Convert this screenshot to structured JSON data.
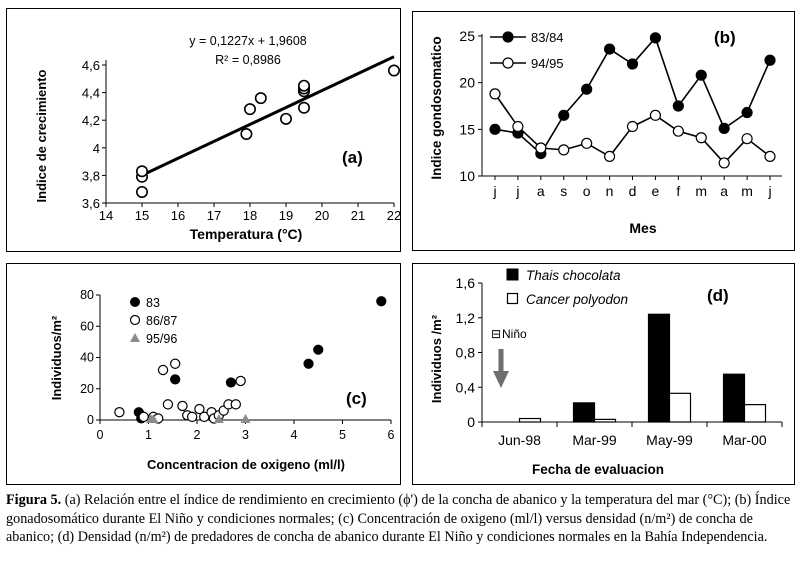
{
  "figures": [
    {
      "type": "scatter",
      "panel_label": "(a)",
      "xlabel": "Temperatura (°C)",
      "ylabel": "Indice de crecimiento",
      "xticks": [
        "14",
        "15",
        "16",
        "17",
        "18",
        "19",
        "20",
        "21",
        "22"
      ],
      "yticks": [
        "3,6",
        "3,8",
        "4",
        "4,2",
        "4,4",
        "4,6"
      ],
      "xlim": [
        14,
        22
      ],
      "ylim": [
        3.6,
        4.6
      ],
      "equation": "y = 0,1227x + 1,9608",
      "r2": "R² = 0,8986",
      "points": [
        [
          15,
          3.68
        ],
        [
          15,
          3.79
        ],
        [
          15,
          3.83
        ],
        [
          17.9,
          4.1
        ],
        [
          18,
          4.28
        ],
        [
          18.3,
          4.36
        ],
        [
          19,
          4.21
        ],
        [
          19.5,
          4.29
        ],
        [
          19.5,
          4.41
        ],
        [
          19.5,
          4.43
        ],
        [
          19.5,
          4.45
        ],
        [
          22,
          4.56
        ]
      ],
      "trendline": {
        "slope": 0.1227,
        "intercept": 1.9608,
        "x": [
          15,
          22
        ]
      },
      "grid": false
    },
    {
      "type": "line",
      "panel_label": "(b)",
      "xlabel": "Mes",
      "ylabel": "Indice gondosomatico",
      "categories": [
        "j",
        "j",
        "a",
        "s",
        "o",
        "n",
        "d",
        "e",
        "f",
        "m",
        "a",
        "m",
        "j"
      ],
      "yticks": [
        "10",
        "15",
        "20",
        "25"
      ],
      "ylim": [
        10,
        25
      ],
      "series": [
        {
          "name": "83/84",
          "marker": "filled",
          "values": [
            15.0,
            14.6,
            12.4,
            16.5,
            19.3,
            23.6,
            22.0,
            24.8,
            17.5,
            20.8,
            15.1,
            16.8,
            22.4
          ]
        },
        {
          "name": "94/95",
          "marker": "open",
          "values": [
            18.8,
            15.3,
            13.0,
            12.8,
            13.5,
            12.1,
            15.3,
            16.5,
            14.8,
            14.1,
            11.4,
            14.0,
            12.1
          ]
        }
      ],
      "legend_position": "top-left",
      "grid": false
    },
    {
      "type": "scatter",
      "panel_label": "(c)",
      "xlabel": "Concentracion de oxigeno (ml/l)",
      "ylabel": "Individuos/m²",
      "xticks": [
        "0",
        "1",
        "2",
        "3",
        "4",
        "5",
        "6"
      ],
      "yticks": [
        "0",
        "20",
        "40",
        "60",
        "80"
      ],
      "xlim": [
        0,
        6
      ],
      "ylim": [
        0,
        80
      ],
      "series": [
        {
          "name": "83",
          "marker": "filled-circle",
          "points": [
            [
              0.8,
              5
            ],
            [
              0.85,
              1
            ],
            [
              1.55,
              26
            ],
            [
              2.7,
              24
            ],
            [
              4.3,
              36
            ],
            [
              4.5,
              45
            ],
            [
              5.8,
              76
            ]
          ]
        },
        {
          "name": "86/87",
          "marker": "open-circle",
          "points": [
            [
              0.4,
              5
            ],
            [
              0.9,
              2
            ],
            [
              1.1,
              2
            ],
            [
              1.2,
              1
            ],
            [
              1.3,
              32
            ],
            [
              1.4,
              10
            ],
            [
              1.55,
              36
            ],
            [
              1.7,
              9
            ],
            [
              1.8,
              3
            ],
            [
              1.9,
              2
            ],
            [
              2.05,
              7
            ],
            [
              2.15,
              2
            ],
            [
              2.3,
              5
            ],
            [
              2.35,
              1
            ],
            [
              2.45,
              3
            ],
            [
              2.55,
              6
            ],
            [
              2.65,
              10
            ],
            [
              2.8,
              10
            ],
            [
              2.9,
              25
            ]
          ]
        },
        {
          "name": "95/96",
          "marker": "gray-triangle",
          "points": [
            [
              1.05,
              0
            ],
            [
              1.1,
              0
            ],
            [
              2.45,
              0
            ],
            [
              3.0,
              0
            ]
          ]
        }
      ],
      "legend_position": "top-left",
      "grid": false
    },
    {
      "type": "bar",
      "panel_label": "(d)",
      "xlabel": "Fecha de evaluacion",
      "ylabel": "Individuos /m²",
      "categories": [
        "Jun-98",
        "Mar-99",
        "May-99",
        "Mar-00"
      ],
      "yticks": [
        "0",
        "0,4",
        "0,8",
        "1,2",
        "1,6"
      ],
      "ylim": [
        0,
        1.6
      ],
      "series": [
        {
          "name": "Thais chocolata",
          "fill": "black",
          "values": [
            0,
            0.22,
            1.24,
            0.55
          ]
        },
        {
          "name": "Cancer polyodon",
          "fill": "white",
          "values": [
            0.04,
            0.03,
            0.33,
            0.2
          ]
        }
      ],
      "annotation": "Niño",
      "annotation_mark": "⊟",
      "arrow_color": "#6e6e6e",
      "legend_position": "top",
      "grid": false
    }
  ],
  "caption": {
    "label": "Figura 5.",
    "text": " (a) Relación entre el índice de rendimiento en crecimiento (ϕ') de la concha de abanico y la temperatura del mar (°C); (b) Índice gonadosomático durante El Niño y condiciones normales; (c) Concentración de oxigeno (ml/l) versus densidad (n/m²) de concha de abanico; (d) Densidad (n/m²) de predadores de concha de abanico durante El Niño y condiciones normales en la Bahía Independencia."
  },
  "colors": {
    "filled": "#000000",
    "open": "#ffffff",
    "triangle": "#8c8c8c",
    "border": "#000000"
  }
}
